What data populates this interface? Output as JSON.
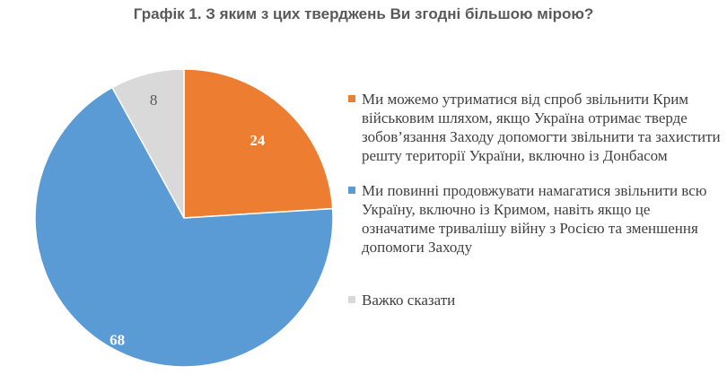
{
  "chart_data": {
    "type": "pie",
    "title": "Графік 1. З яким з цих тверджень Ви згодні більшою мірою?",
    "legend_position": "right",
    "slices": [
      {
        "label": "Ми можемо утриматися від спроб звільнити Крим військовим шляхом, якщо Україна отримає тверде зобов’язання Заходу допомогти звільнити та захистити решту території України, включно із Донбасом",
        "value": 24,
        "color": "#ED7D31"
      },
      {
        "label": "Ми повинні продовжувати намагатися звільнити всю Україну, включно із Кримом, навіть якщо це означатиме тривалішу війну з Росією та зменшення допомоги Заходу",
        "value": 68,
        "color": "#5B9BD5"
      },
      {
        "label": "Важко сказати",
        "value": 8,
        "color": "#D9D9D9"
      }
    ],
    "data_labels": [
      "24",
      "68",
      "8"
    ],
    "data_label_colors": [
      "#ffffff",
      "#ffffff",
      "#595959"
    ]
  }
}
